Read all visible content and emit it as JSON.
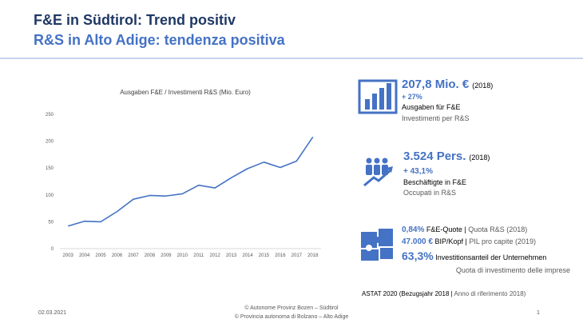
{
  "slide": {
    "title": "F&E in Südtirol: Trend positiv",
    "subtitle": "R&S in Alto Adige: tendenza positiva",
    "kpi1": {
      "value": "207,8 Mio. €",
      "year": "(2018)",
      "change": "+ 27%",
      "de": "Ausgaben für F&E",
      "it": "Investimenti per R&S"
    },
    "kpi2": {
      "value": "3.524 Pers.",
      "year": "(2018)",
      "change": "+ 43,1%",
      "de": "Beschäftigte in F&E",
      "it": "Occupati in R&S"
    },
    "kpi3": {
      "line1": {
        "value": "0,84%",
        "de": " F&E-Quote | ",
        "it": "Quota R&S (2018)"
      },
      "line2": {
        "value": "47.000 €",
        "de": " BIP/Kopf | ",
        "it": "PIL pro capite (2019)"
      },
      "line3": {
        "value": "63,3%",
        "de": " Investitionsanteil der Unternehmen",
        "it": "Quota di investimento delle imprese"
      }
    },
    "source": {
      "de": "ASTAT 2020 (Bezugsjahr 2018 | ",
      "it": "Anno di riferimento 2018)"
    },
    "footer": {
      "date": "02.03.2021",
      "line1": "© Autonome Provinz Bozen – Südtirol",
      "line2": "© Provincia autonoma di Bolzano – Alto Adige",
      "page": "1"
    }
  },
  "chart_data": {
    "type": "line",
    "title": "Ausgaben F&E / Investimenti R&S (Mio. Euro)",
    "categories": [
      "2003",
      "2004",
      "2005",
      "2006",
      "2007",
      "2008",
      "2009",
      "2010",
      "2011",
      "2012",
      "2013",
      "2014",
      "2015",
      "2016",
      "2017",
      "2018"
    ],
    "values": [
      42,
      51,
      50,
      69,
      92,
      99,
      98,
      102,
      118,
      113,
      132,
      149,
      161,
      151,
      163,
      207.8
    ],
    "color": "#4472c4",
    "ylim": [
      0,
      250
    ],
    "yticks": [
      0,
      50,
      100,
      150,
      200,
      250
    ],
    "grid": false
  }
}
